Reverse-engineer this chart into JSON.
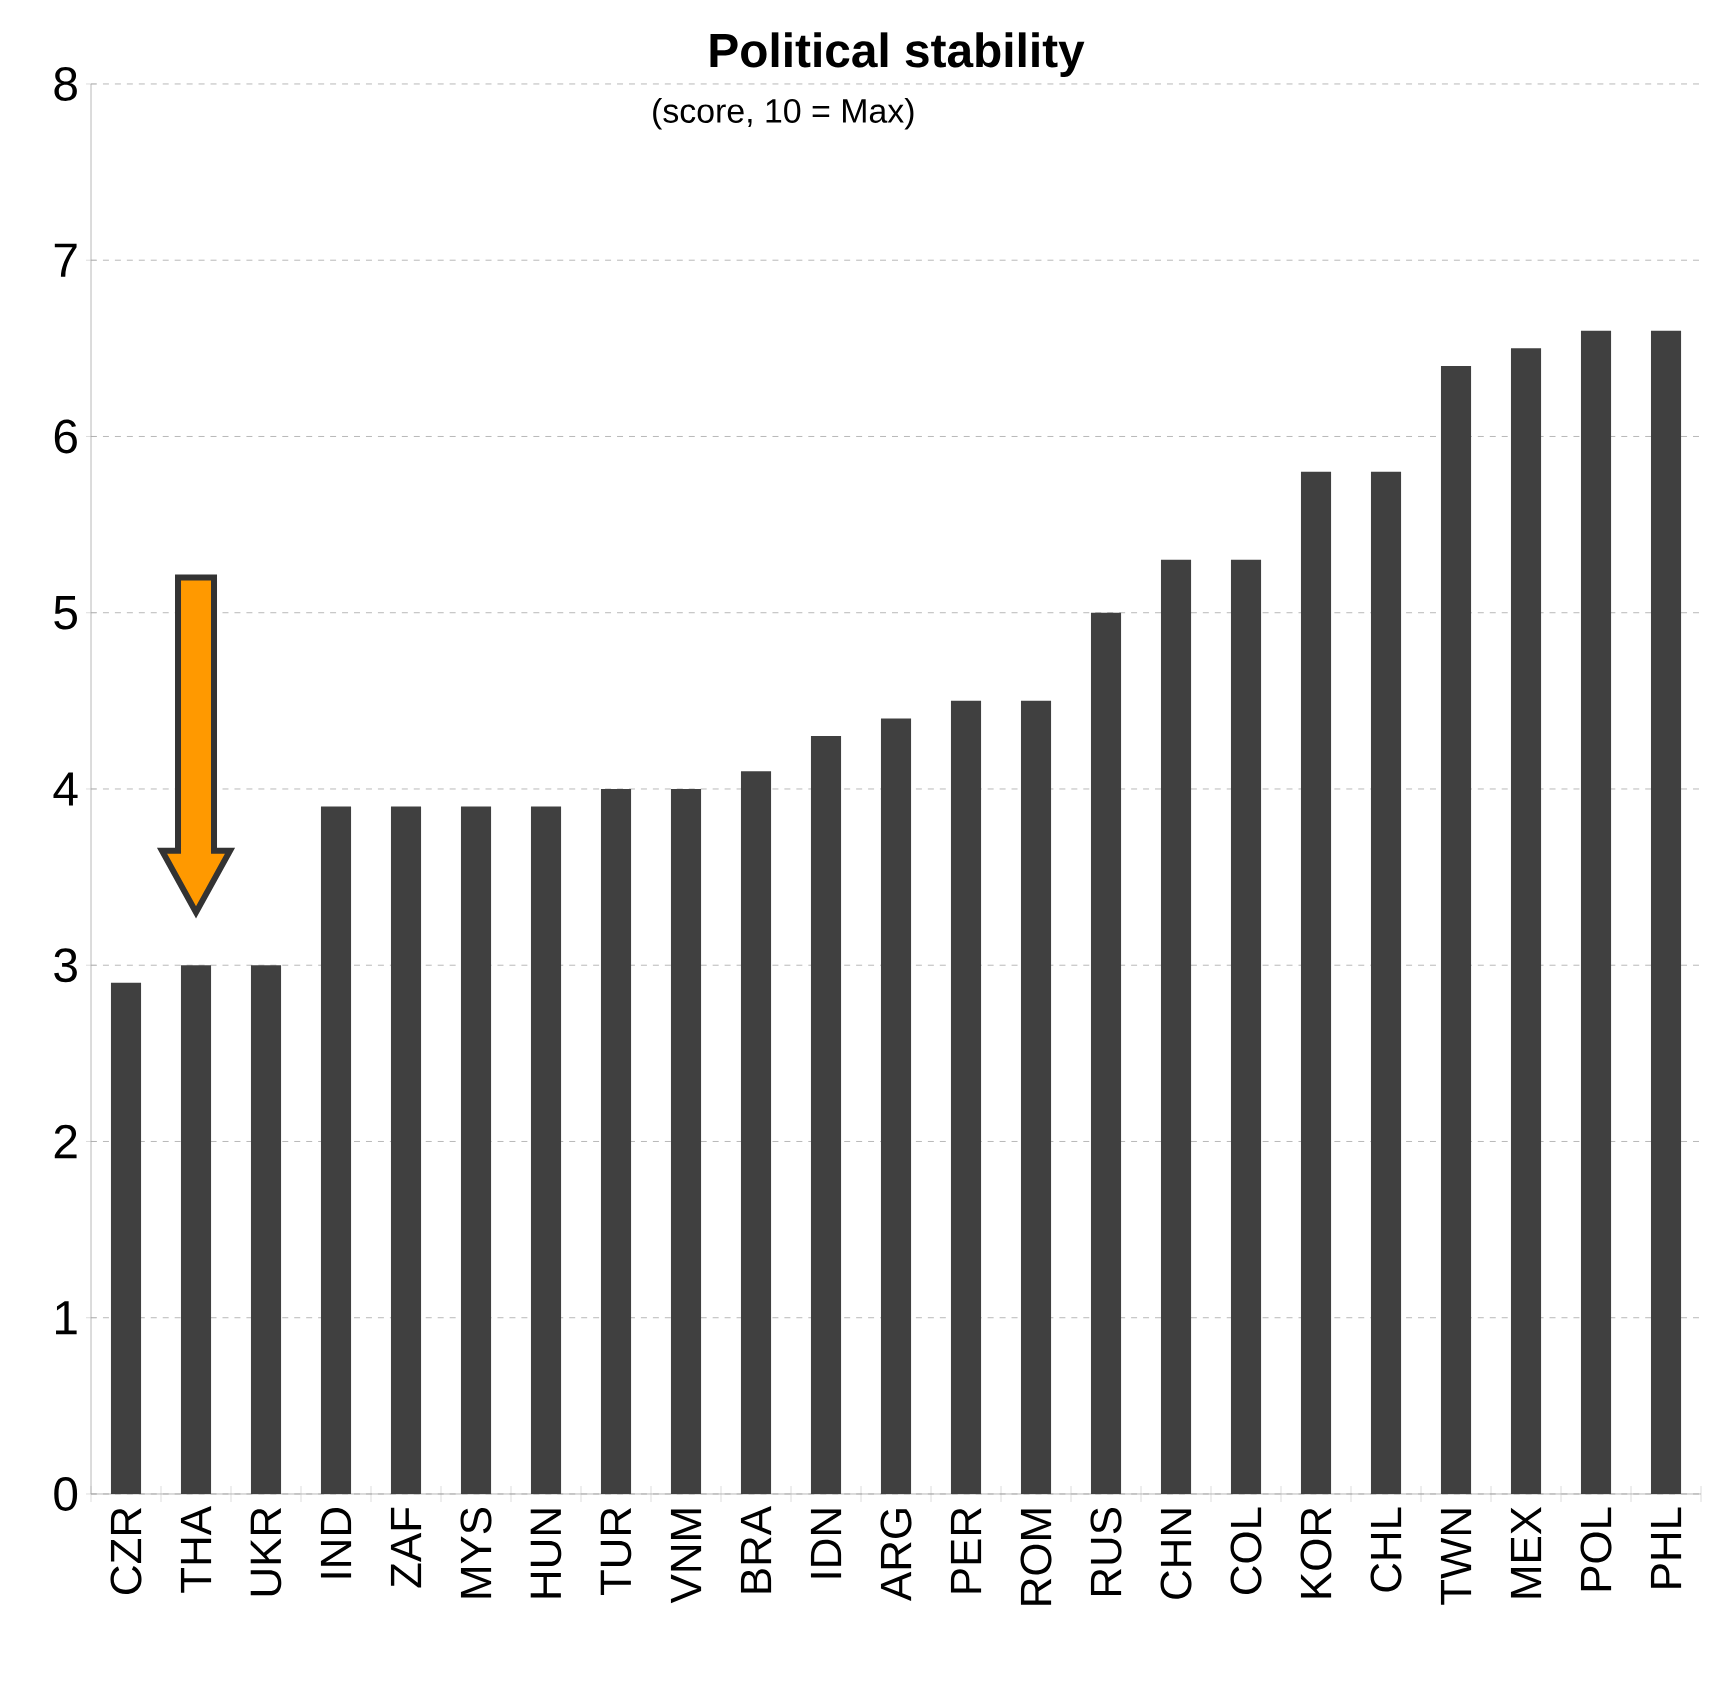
{
  "chart_data": {
    "type": "bar",
    "title": "Political stability",
    "subtitle": "(score, 10 = Max)",
    "categories": [
      "CZR",
      "THA",
      "UKR",
      "IND",
      "ZAF",
      "MYS",
      "HUN",
      "TUR",
      "VNM",
      "BRA",
      "IDN",
      "ARG",
      "PER",
      "ROM",
      "RUS",
      "CHN",
      "COL",
      "KOR",
      "CHL",
      "TWN",
      "MEX",
      "POL",
      "PHL"
    ],
    "values": [
      2.9,
      3.0,
      3.0,
      3.9,
      3.9,
      3.9,
      3.9,
      4.0,
      4.0,
      4.1,
      4.3,
      4.4,
      4.5,
      4.5,
      5.0,
      5.3,
      5.3,
      5.8,
      5.8,
      6.4,
      6.5,
      6.6,
      6.6
    ],
    "color": "#404040",
    "ylim": [
      0,
      8
    ],
    "yticks": [
      0,
      1,
      2,
      3,
      4,
      5,
      6,
      7,
      8
    ],
    "grid": "y"
  }
}
